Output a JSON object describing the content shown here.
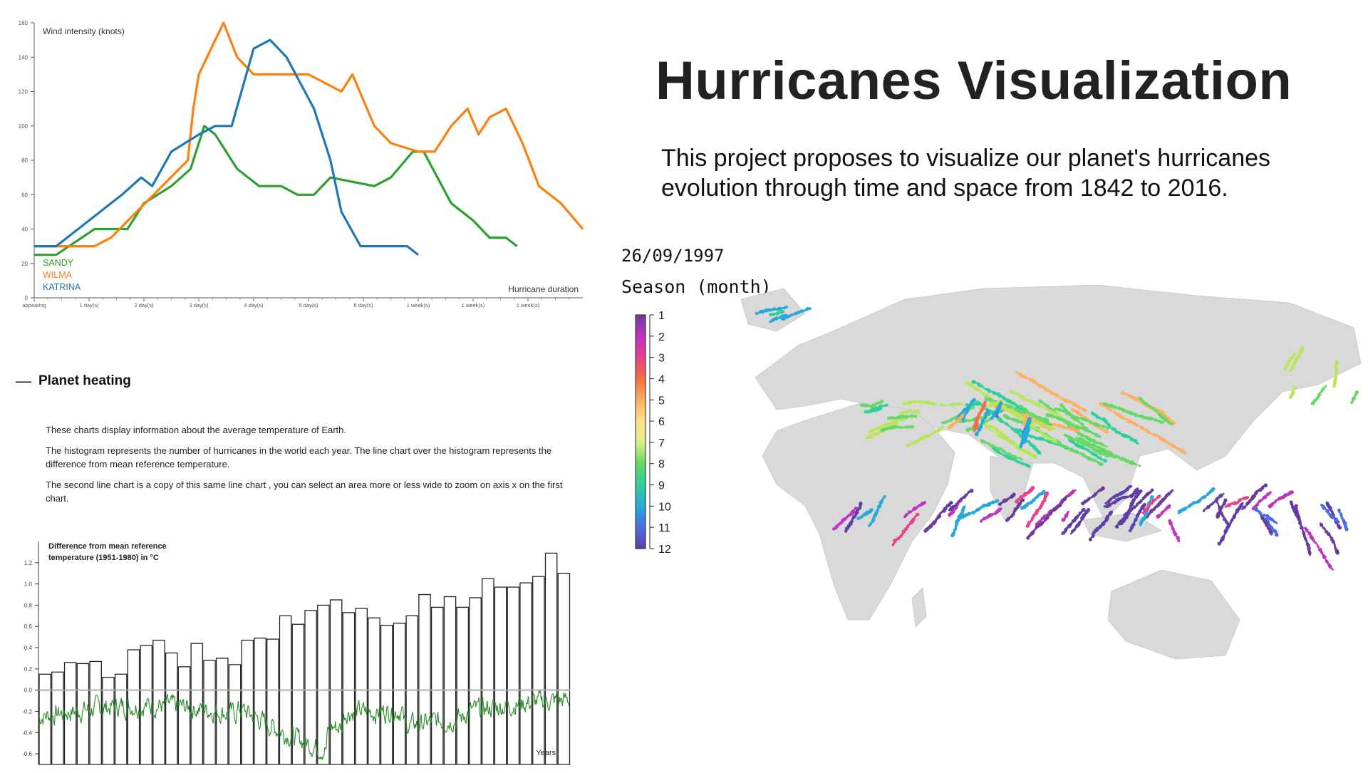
{
  "title": "Hurricanes Visualization",
  "intro_lines": [
    "This project proposes to visualize our planet's hurricanes",
    "evolution through time and space from 1842 to 2016."
  ],
  "date": "26/09/1997",
  "season_label": "Season (month)",
  "season_months": [
    "1",
    "2",
    "3",
    "4",
    "5",
    "6",
    "7",
    "8",
    "9",
    "10",
    "11",
    "12"
  ],
  "colors": {
    "sandy": "#2ca02c",
    "wilma": "#ff7f0e",
    "katrina": "#1f77b4",
    "temp_above": "#e31a1c",
    "temp_below": "#238b23",
    "map_land": "#d9d9d9"
  },
  "planet_heating": {
    "heading": "Planet heating",
    "toggle": "—",
    "paragraphs": [
      "These charts display information about the average temperature of Earth.",
      "The histogram represents the number of hurricanes in the world each year. The line chart over the histogram represents the difference from mean reference temperature.",
      "The second line chart is a copy of this same line chart , you can select an area more or less wide to zoom on axis x on the first chart."
    ]
  },
  "chart_data": [
    {
      "type": "line",
      "ylabel": "Wind intensity (knots)",
      "xlabel": "Hurricane duration",
      "ylim": [
        0,
        160
      ],
      "yticks": [
        0,
        20,
        40,
        60,
        80,
        100,
        120,
        140,
        160
      ],
      "xlim": [
        0,
        10
      ],
      "xtick_labels": [
        "appearing",
        "1 day(s)",
        "2 day(s)",
        "3 day(s)",
        "4 day(s)",
        "5 day(s)",
        "6 day(s)",
        "1 week(s)",
        "1 week(s)",
        "1 week(s)"
      ],
      "legend": "bottom-left",
      "series": [
        {
          "name": "SANDY",
          "x": [
            0,
            0.4,
            1.1,
            1.7,
            2.0,
            2.5,
            2.85,
            3.1,
            3.3,
            3.7,
            4.1,
            4.5,
            4.8,
            5.1,
            5.4,
            6.2,
            6.5,
            6.9,
            7.1,
            7.6,
            8.0,
            8.3,
            8.6,
            8.8
          ],
          "y": [
            25,
            25,
            40,
            40,
            55,
            65,
            75,
            100,
            95,
            75,
            65,
            65,
            60,
            60,
            70,
            65,
            70,
            85,
            85,
            55,
            45,
            35,
            35,
            30
          ]
        },
        {
          "name": "WILMA",
          "x": [
            0,
            1.1,
            1.4,
            2.8,
            2.9,
            3.0,
            3.3,
            3.45,
            3.7,
            4.0,
            4.5,
            5.0,
            5.6,
            5.8,
            6.2,
            6.5,
            7.0,
            7.3,
            7.6,
            7.9,
            8.1,
            8.3,
            8.6,
            8.9,
            9.2,
            9.6,
            10.0
          ],
          "y": [
            30,
            30,
            35,
            80,
            110,
            130,
            150,
            160,
            140,
            130,
            130,
            130,
            120,
            130,
            100,
            90,
            85,
            85,
            100,
            110,
            95,
            105,
            110,
            90,
            65,
            55,
            40
          ]
        },
        {
          "name": "KATRINA",
          "x": [
            0,
            0.4,
            1.6,
            1.95,
            2.15,
            2.5,
            3.0,
            3.3,
            3.6,
            4.0,
            4.3,
            4.6,
            5.1,
            5.4,
            5.6,
            5.95,
            6.3,
            6.8,
            7.0
          ],
          "y": [
            30,
            30,
            60,
            70,
            65,
            85,
            95,
            100,
            100,
            145,
            150,
            140,
            110,
            80,
            50,
            30,
            30,
            30,
            25
          ]
        }
      ]
    },
    {
      "type": "bar",
      "title": "Difference from mean reference temperature (1951-1980) in °C",
      "xlabel": "Years",
      "ylim": [
        -0.7,
        1.4
      ],
      "yticks": [
        -0.6,
        -0.4,
        -0.2,
        0.0,
        0.2,
        0.4,
        0.6,
        0.8,
        1.0,
        1.2
      ],
      "bars_height_in_temp_units": [
        0.15,
        0.17,
        0.26,
        0.25,
        0.27,
        0.12,
        0.15,
        0.38,
        0.42,
        0.47,
        0.35,
        0.22,
        0.44,
        0.28,
        0.3,
        0.24,
        0.47,
        0.49,
        0.48,
        0.7,
        0.62,
        0.75,
        0.8,
        0.85,
        0.73,
        0.77,
        0.68,
        0.61,
        0.63,
        0.7,
        0.9,
        0.78,
        0.88,
        0.78,
        0.87,
        1.05,
        0.97,
        0.97,
        1.01,
        1.07,
        1.29,
        1.1
      ],
      "temperature_line_note": "monthly anomaly series, red above 0, green below 0"
    }
  ]
}
